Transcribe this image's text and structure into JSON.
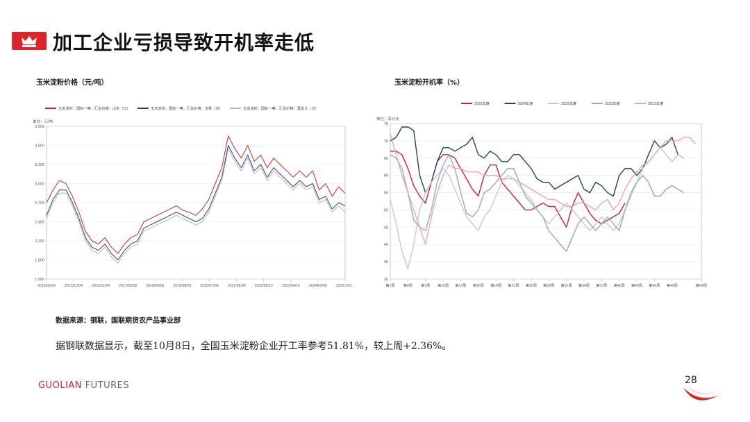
{
  "header": {
    "title": "加工企业亏损导致开机率走低"
  },
  "charts": [
    {
      "title": "玉米淀粉价格（元/吨）"
    },
    {
      "title": "玉米淀粉开机率（%）"
    }
  ],
  "footer": {
    "source": "数据来源：钢联，国联期货农产品事业部",
    "summary": "据钢联数据显示，截至10月8日，全国玉米淀粉企业开工率参考51.81%，较上周+2.36%。",
    "brand_bold": "GUOLIAN",
    "brand_thin": "FUTURES",
    "page_number": "28"
  },
  "chart_data": [
    {
      "type": "line",
      "unit_label": "单位：元/吨",
      "ylim": [
        1500,
        3900
      ],
      "y_ticks": [
        "1,500",
        "1,800",
        "2,100",
        "2,400",
        "2,700",
        "3,000",
        "3,300",
        "3,600",
        "3,900"
      ],
      "y_tick_values": [
        1500,
        1800,
        2100,
        2400,
        2700,
        3000,
        3300,
        3600,
        3900
      ],
      "x_ticks": [
        "2015/01/04",
        "2015/12/04",
        "2016/11/04",
        "2017/09/30",
        "2018/09/03",
        "2019/08/05",
        "2020/07/08",
        "2021/06/08",
        "2022/05/10",
        "2023/04/10",
        "2024/03/06",
        "2025/10/10"
      ],
      "grid": true,
      "legend_position": "top",
      "series": [
        {
          "name": "玉米淀粉：国标一等：汇总价格：山东（日）",
          "color": "#c8232c",
          "values": [
            2700,
            2900,
            3050,
            3000,
            2800,
            2550,
            2250,
            2100,
            2050,
            2150,
            2000,
            1900,
            2050,
            2150,
            2200,
            2400,
            2450,
            2500,
            2550,
            2600,
            2650,
            2580,
            2550,
            2500,
            2600,
            2750,
            3000,
            3250,
            3750,
            3550,
            3400,
            3600,
            3350,
            3450,
            3250,
            3400,
            3300,
            3200,
            3100,
            3200,
            3100,
            3200,
            2900,
            3000,
            2800,
            2950,
            2850
          ]
        },
        {
          "name": "玉米淀粉：国标一等：汇总价格：吉林（日）",
          "color": "#1f3f7a",
          "values": [
            2500,
            2750,
            2900,
            2900,
            2700,
            2450,
            2150,
            2000,
            1950,
            2050,
            1900,
            1800,
            1950,
            2050,
            2100,
            2300,
            2350,
            2400,
            2450,
            2500,
            2550,
            2500,
            2450,
            2400,
            2450,
            2600,
            2850,
            3100,
            3600,
            3400,
            3250,
            3450,
            3200,
            3300,
            3100,
            3250,
            3150,
            3050,
            2950,
            3050,
            2950,
            3000,
            2750,
            2800,
            2600,
            2700,
            2650
          ]
        },
        {
          "name": "玉米淀粉：国标一等：汇总价格：黑龙江（日）",
          "color": "#b5b5b5",
          "values": [
            2450,
            2700,
            2850,
            2850,
            2650,
            2400,
            2100,
            1950,
            1900,
            2000,
            1850,
            1750,
            1900,
            2000,
            2050,
            2250,
            2300,
            2350,
            2400,
            2450,
            2500,
            2450,
            2400,
            2350,
            2400,
            2550,
            2800,
            3050,
            3550,
            3350,
            3200,
            3400,
            3150,
            3250,
            3050,
            3200,
            3100,
            3000,
            2900,
            3000,
            2900,
            2950,
            2700,
            2750,
            2550,
            2650,
            2550
          ]
        }
      ]
    },
    {
      "type": "line",
      "unit_label": "单位：百分比",
      "ylim": [
        30,
        75
      ],
      "y_ticks": [
        "30",
        "35",
        "40",
        "45",
        "50",
        "55",
        "60",
        "65",
        "70",
        "75"
      ],
      "y_tick_values": [
        30,
        35,
        40,
        45,
        50,
        55,
        60,
        65,
        70,
        75
      ],
      "x_ticks": [
        "第1周",
        "第4周",
        "第7周",
        "第10周",
        "第13周",
        "第16周",
        "第19周",
        "第22周",
        "第25周",
        "第28周",
        "第31周",
        "第34周",
        "第37周",
        "第40周",
        "第43周",
        "第46周",
        "第49周",
        "第54周"
      ],
      "x_tick_values": [
        1,
        4,
        7,
        10,
        13,
        16,
        19,
        22,
        25,
        28,
        31,
        34,
        37,
        40,
        43,
        46,
        49,
        54
      ],
      "grid": true,
      "legend_position": "top",
      "series": [
        {
          "name": "2025年度",
          "color": "#c8232c",
          "x": [
            1,
            2,
            3,
            4,
            5,
            6,
            7,
            8,
            9,
            10,
            11,
            12,
            13,
            14,
            15,
            16,
            17,
            18,
            19,
            20,
            21,
            22,
            23,
            24,
            25,
            26,
            27,
            28,
            29,
            30,
            31,
            32,
            33,
            34,
            35,
            36,
            37,
            38,
            39,
            40,
            41
          ],
          "values": [
            67,
            67,
            66,
            62,
            57,
            54,
            52,
            58,
            64,
            66,
            66,
            65,
            62,
            59,
            56,
            54,
            60,
            63,
            63,
            58,
            56,
            54,
            52,
            50,
            50,
            51,
            52,
            51,
            51,
            48,
            45,
            51,
            55,
            52,
            49,
            47,
            46,
            47,
            48,
            49,
            52
          ]
        },
        {
          "name": "2024年度",
          "color": "#1f3f7a",
          "x": [
            1,
            2,
            3,
            4,
            5,
            6,
            7,
            8,
            9,
            10,
            11,
            12,
            13,
            14,
            15,
            16,
            17,
            18,
            19,
            20,
            21,
            22,
            23,
            24,
            25,
            26,
            27,
            28,
            29,
            30,
            31,
            32,
            33,
            34,
            35,
            36,
            37,
            38,
            39,
            40,
            41,
            42,
            43,
            44,
            45,
            46,
            47,
            48,
            49,
            50,
            51
          ],
          "values": [
            70,
            71,
            74,
            74,
            73,
            60,
            55,
            58,
            64,
            68,
            68,
            67,
            68,
            69,
            71,
            66,
            65,
            67,
            66,
            64,
            64,
            66,
            66,
            64,
            62,
            59,
            58,
            58,
            56,
            57,
            58,
            59,
            60,
            56,
            55,
            58,
            57,
            55,
            54,
            60,
            62,
            62,
            60,
            62,
            66,
            70,
            68,
            69,
            71,
            66,
            65
          ]
        },
        {
          "name": "2023年度",
          "color": "#c8c8c8",
          "x": [
            1,
            2,
            3,
            4,
            5,
            6,
            7,
            8,
            9,
            10,
            11,
            12,
            13,
            14,
            15,
            16,
            17,
            18,
            19,
            20,
            21,
            22,
            23,
            24,
            25,
            26,
            27,
            28,
            29,
            30,
            31,
            32,
            33,
            34,
            35,
            36,
            37,
            38,
            39,
            40,
            41,
            42,
            43,
            44,
            45,
            46,
            47,
            48,
            49,
            50,
            51
          ],
          "values": [
            53,
            46,
            38,
            33,
            40,
            50,
            55,
            58,
            60,
            62,
            60,
            56,
            52,
            48,
            46,
            44,
            48,
            50,
            54,
            58,
            60,
            59,
            57,
            55,
            53,
            50,
            48,
            46,
            48,
            50,
            52,
            50,
            48,
            46,
            44,
            46,
            48,
            46,
            44,
            46,
            50,
            54,
            58,
            62,
            64,
            66,
            68,
            66,
            64,
            66,
            65
          ]
        },
        {
          "name": "2022年度",
          "color": "#8fa8cc",
          "x": [
            1,
            2,
            3,
            4,
            5,
            6,
            7,
            8,
            9,
            10,
            11,
            12,
            13,
            14,
            15,
            16,
            17,
            18,
            19,
            20,
            21,
            22,
            23,
            24,
            25,
            26,
            27,
            28,
            29,
            30,
            31,
            32,
            33,
            34,
            35,
            36,
            37,
            38,
            39,
            40,
            41,
            42,
            43,
            44,
            45,
            46,
            47,
            48,
            49,
            50,
            51
          ],
          "values": [
            66,
            65,
            62,
            55,
            47,
            45,
            44,
            50,
            58,
            63,
            66,
            62,
            55,
            49,
            48,
            50,
            55,
            56,
            58,
            60,
            62,
            62,
            58,
            54,
            52,
            50,
            48,
            44,
            42,
            40,
            38,
            42,
            46,
            48,
            46,
            44,
            46,
            48,
            46,
            44,
            50,
            55,
            58,
            60,
            58,
            54,
            54,
            56,
            57,
            56,
            55
          ]
        },
        {
          "name": "2021年度",
          "color": "#f0a3ab",
          "x": [
            1,
            2,
            3,
            4,
            5,
            6,
            7,
            8,
            9,
            10,
            11,
            12,
            13,
            14,
            15,
            16,
            17,
            18,
            19,
            20,
            21,
            22,
            23,
            24,
            25,
            26,
            27,
            28,
            29,
            30,
            31,
            32,
            33,
            34,
            35,
            36,
            37,
            38,
            39,
            40,
            41,
            42,
            43,
            44,
            45,
            46,
            47,
            48,
            49,
            50,
            51,
            52,
            53
          ],
          "values": [
            72,
            66,
            60,
            55,
            50,
            45,
            40,
            48,
            55,
            60,
            63,
            62,
            62,
            61,
            61,
            61,
            60,
            60,
            60,
            59,
            59,
            59,
            58,
            57,
            56,
            55,
            54,
            53,
            53,
            52,
            51,
            51,
            52,
            52,
            51,
            50,
            52,
            53,
            50,
            52,
            56,
            59,
            61,
            63,
            64,
            66,
            68,
            70,
            70,
            70,
            71,
            71,
            69
          ]
        }
      ]
    }
  ]
}
